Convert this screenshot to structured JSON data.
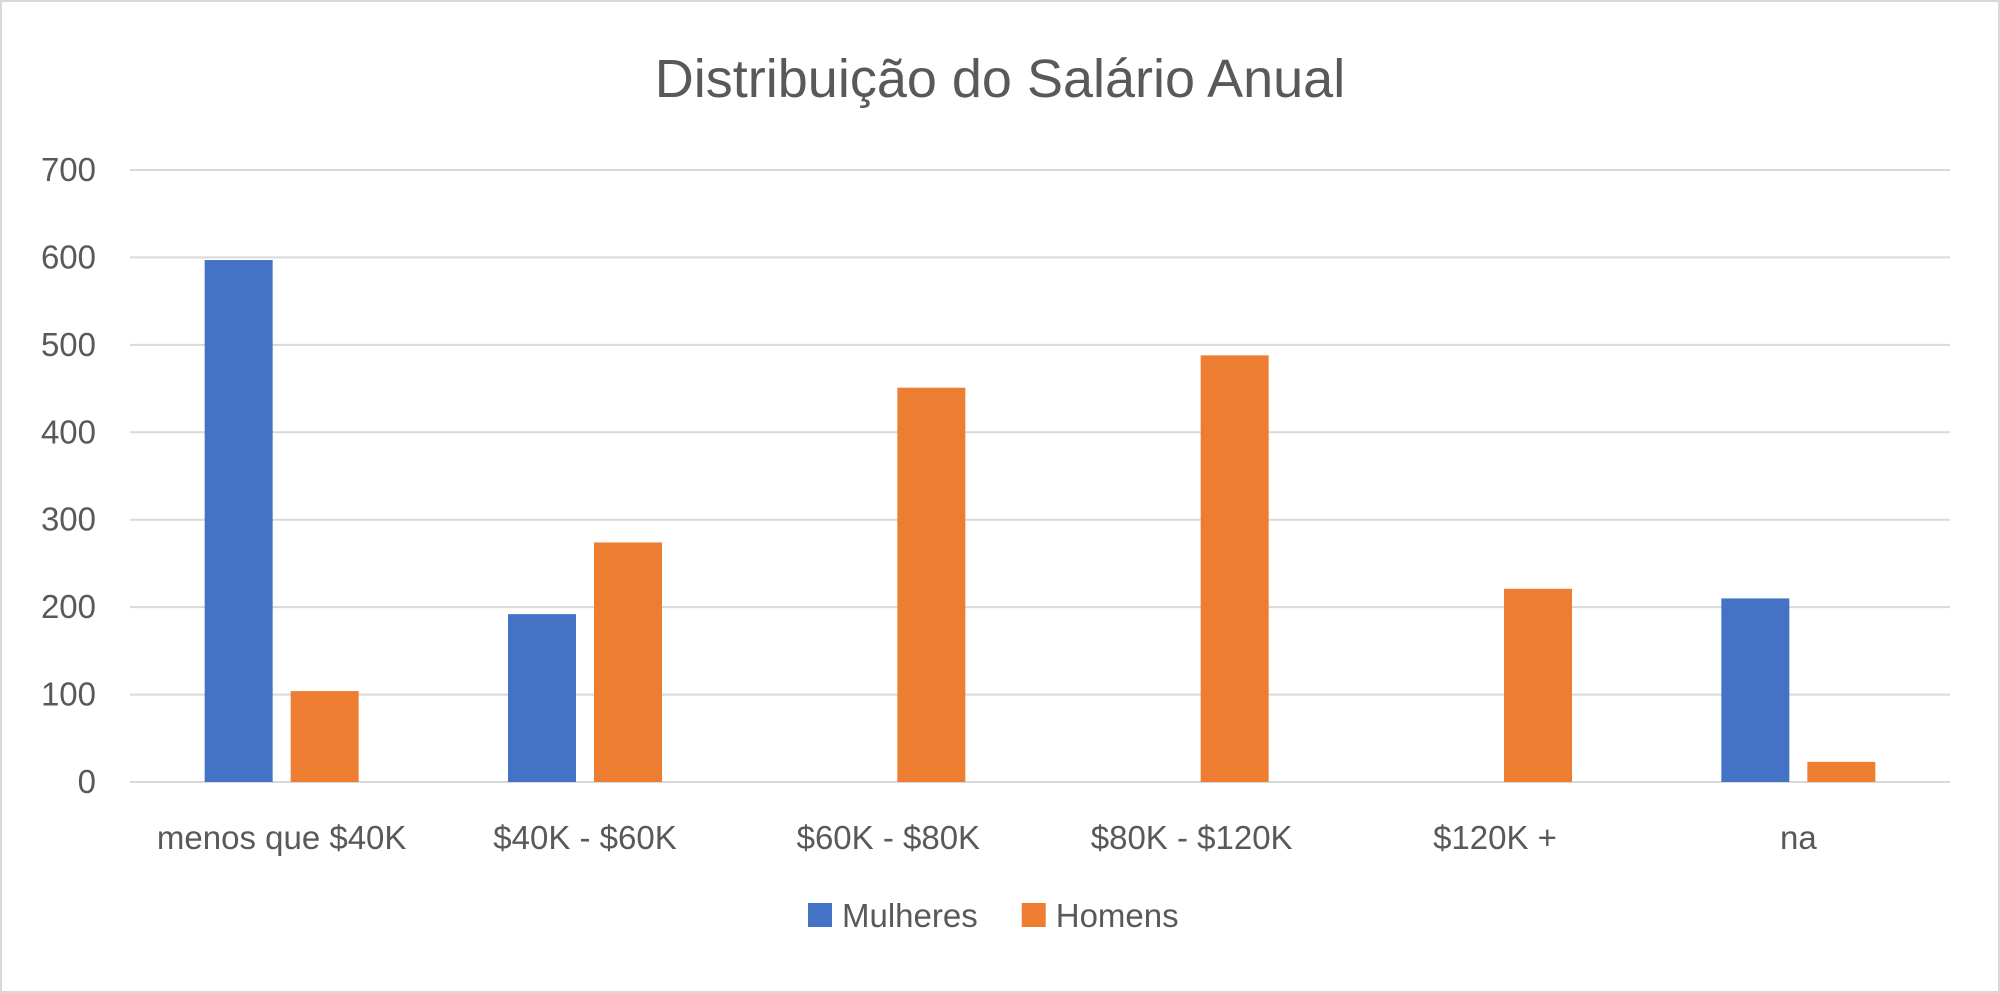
{
  "chart_data": {
    "type": "bar",
    "title": "Distribuição do Salário Anual",
    "xlabel": "",
    "ylabel": "",
    "categories": [
      "menos que $40K",
      "$40K - $60K",
      "$60K - $80K",
      "$80K - $120K",
      "$120K +",
      "na"
    ],
    "series": [
      {
        "name": "Mulheres",
        "color": "#4472C4",
        "values": [
          597,
          192,
          0,
          0,
          0,
          210
        ]
      },
      {
        "name": "Homens",
        "color": "#ED7D31",
        "values": [
          104,
          274,
          451,
          488,
          221,
          23
        ]
      }
    ],
    "ylim": [
      0,
      700
    ],
    "yticks": [
      "0",
      "100",
      "200",
      "300",
      "400",
      "500",
      "600",
      "700"
    ],
    "grid": true,
    "legend_position": "bottom"
  }
}
